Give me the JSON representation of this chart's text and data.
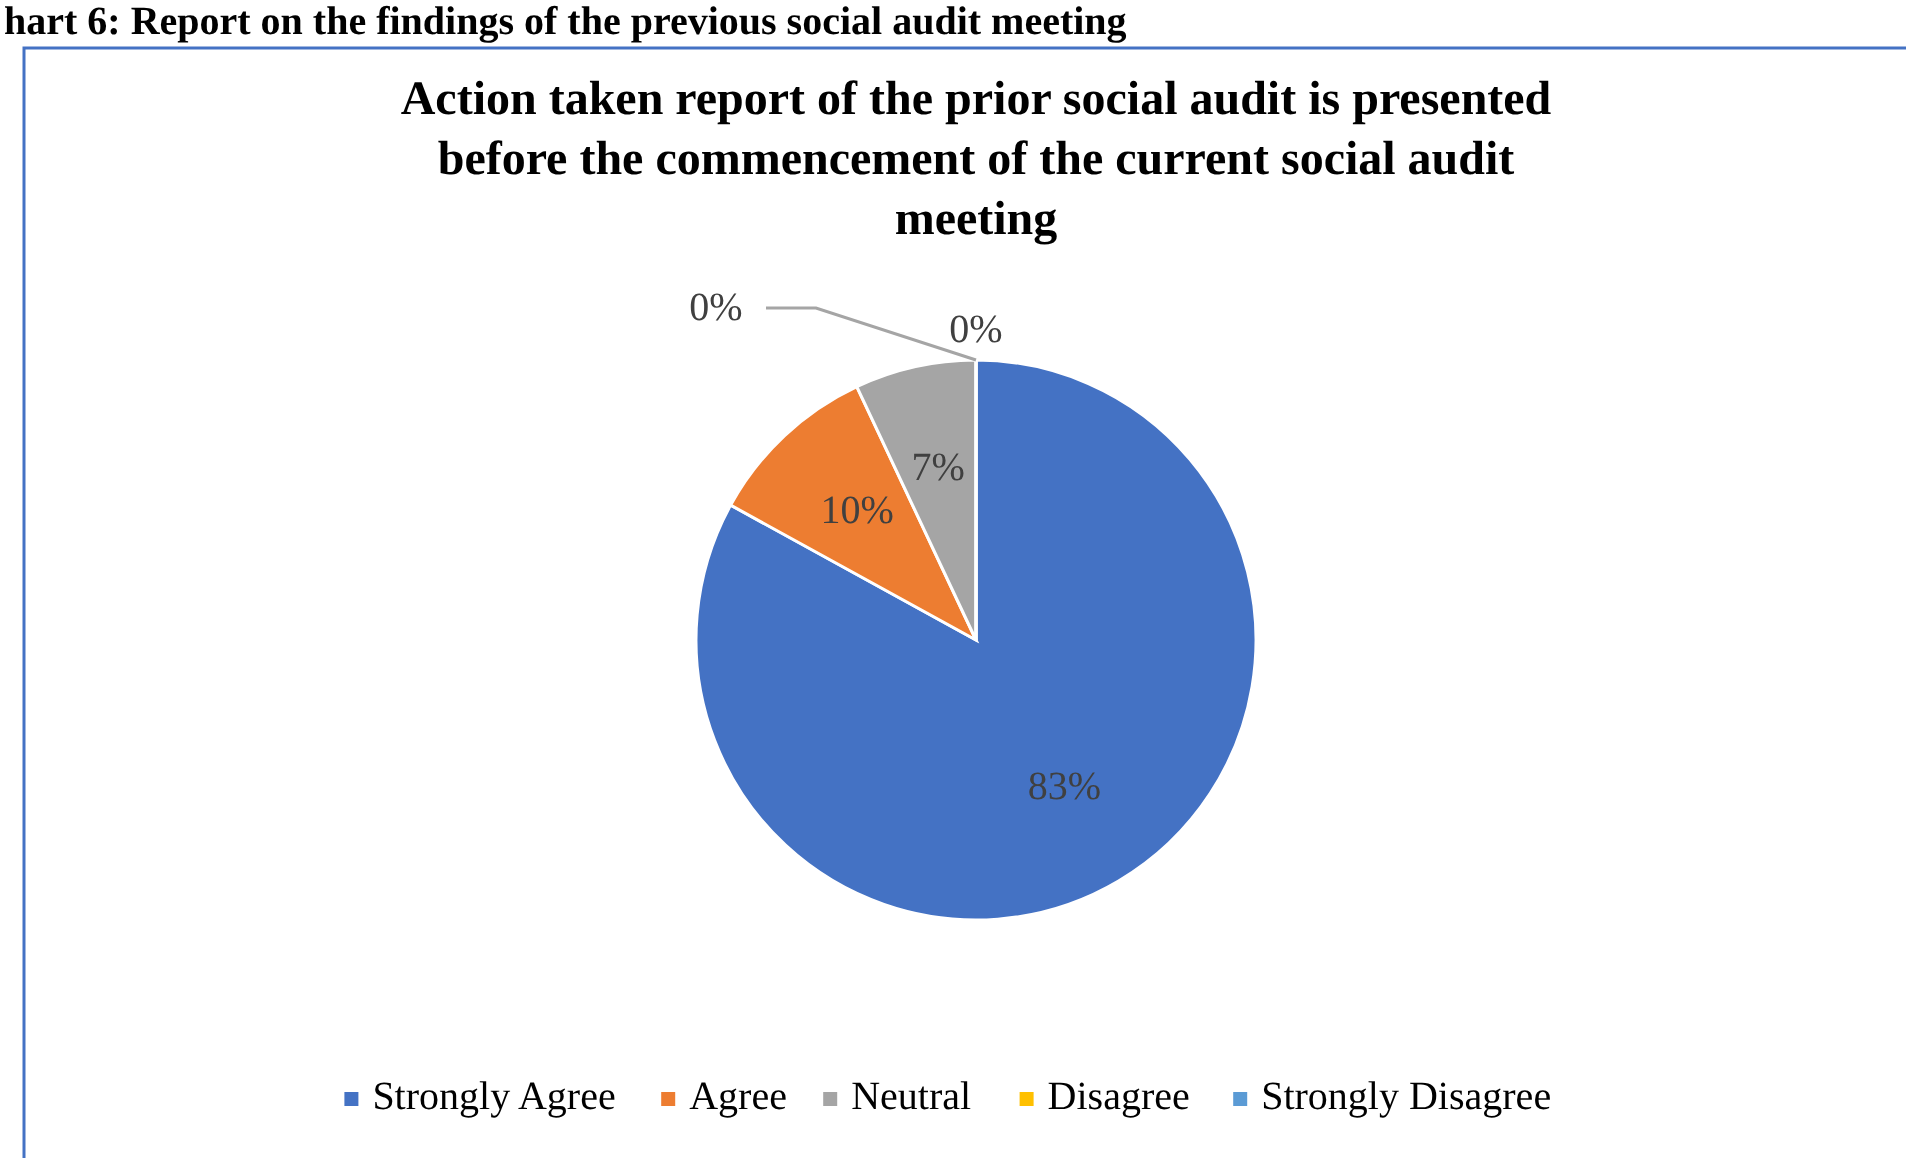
{
  "chart_data": {
    "type": "pie",
    "title": "Action taken report of the prior social audit is presented before the commencement of the current social audit meeting",
    "annotations": [
      "hart 6: Report on the findings of the previous social audit meeting"
    ],
    "categories": [
      "Strongly Agree",
      "Agree",
      "Neutral",
      "Disagree",
      "Strongly Disagree"
    ],
    "values": [
      83,
      10,
      7,
      0,
      0
    ],
    "colors": [
      "#4472c4",
      "#ed7d31",
      "#a5a5a5",
      "#ffc000",
      "#5b9bd5"
    ],
    "value_labels": [
      "83%",
      "10%",
      "7%",
      "0%",
      "0%"
    ],
    "legend": "bottom"
  }
}
